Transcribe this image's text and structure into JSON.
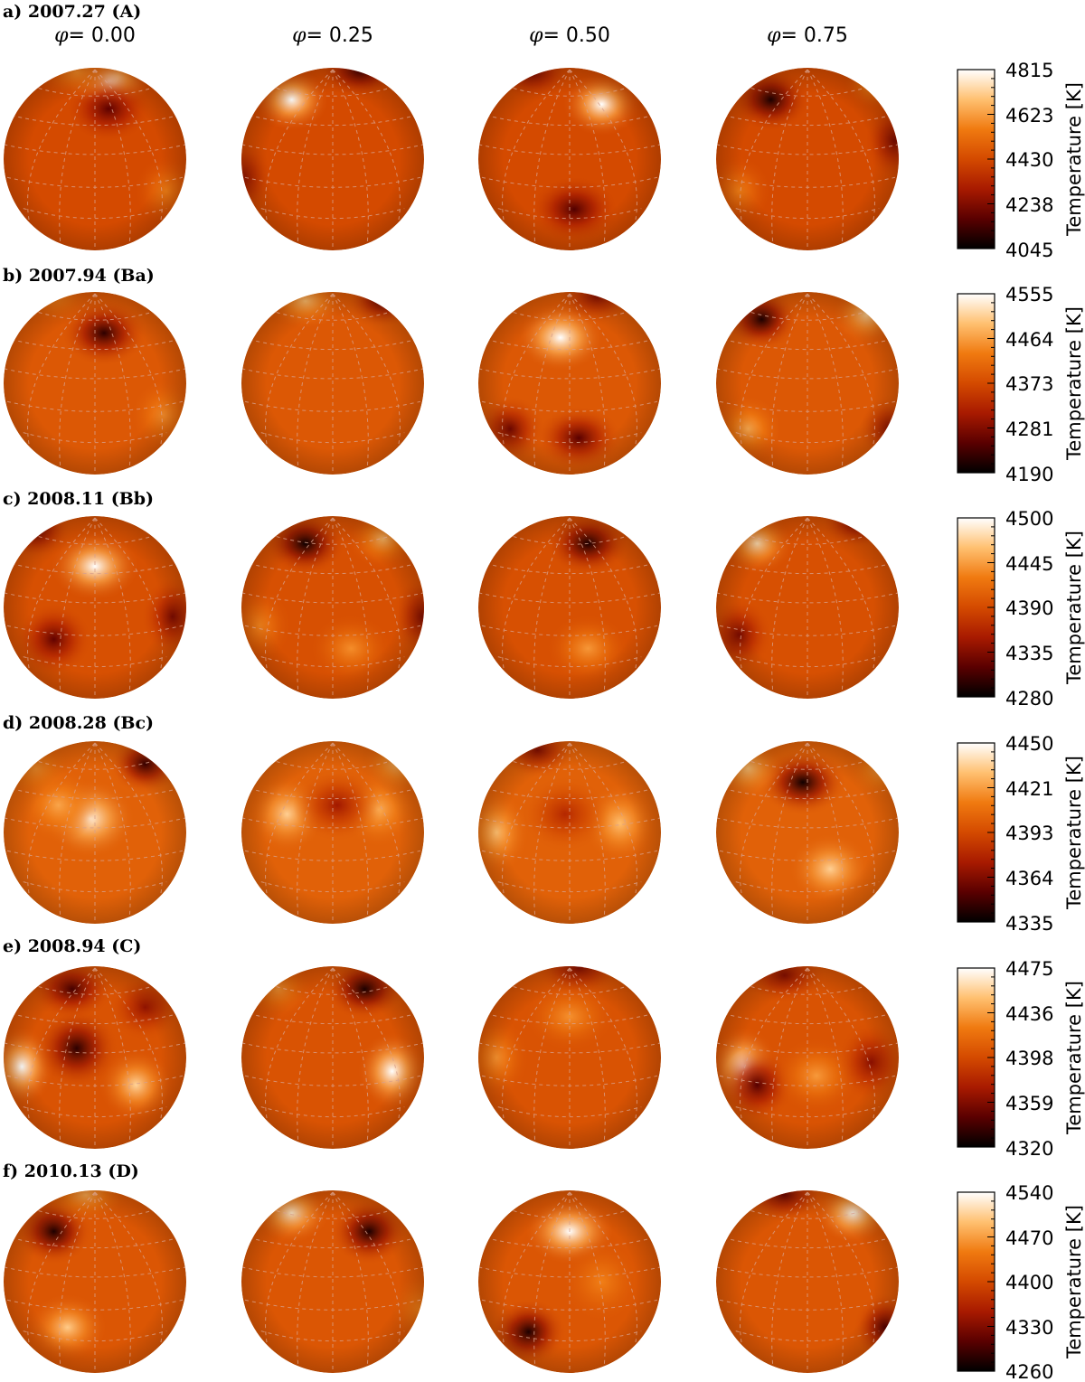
{
  "figure": {
    "phase_symbol": "φ",
    "phases": [
      "= 0.00",
      "= 0.25",
      "= 0.50",
      "= 0.75"
    ],
    "colorbar_title": "Temperature [K]",
    "colors": {
      "cmap": [
        "#000000",
        "#5a0000",
        "#a81a00",
        "#d44a00",
        "#f07a10",
        "#ffc070",
        "#ffffff"
      ],
      "grid": "#d9a08a"
    },
    "rows": [
      {
        "label": "a) 2007.27 (A)",
        "colorbar_ticks": [
          "4815",
          "4623",
          "4430",
          "4238",
          "4045"
        ],
        "base_level": 0.5,
        "spheres": [
          {
            "name": "a-phase-000",
            "spots": [
              [
                0.15,
                -0.85,
                0.95
              ],
              [
                0.15,
                -0.55,
                -0.65
              ],
              [
                0.78,
                0.35,
                0.35
              ],
              [
                -0.2,
                -0.95,
                0.4
              ]
            ]
          },
          {
            "name": "a-phase-025",
            "spots": [
              [
                -0.45,
                -0.65,
                1.0
              ],
              [
                0.3,
                -0.97,
                -0.75
              ],
              [
                -0.98,
                0.2,
                -0.4
              ]
            ]
          },
          {
            "name": "a-phase-050",
            "spots": [
              [
                0.35,
                -0.6,
                1.0
              ],
              [
                0.05,
                0.55,
                -0.7
              ],
              [
                -0.4,
                -0.95,
                -0.5
              ]
            ]
          },
          {
            "name": "a-phase-075",
            "spots": [
              [
                -0.4,
                -0.65,
                -0.9
              ],
              [
                -0.75,
                0.35,
                0.35
              ],
              [
                0.75,
                -0.85,
                0.6
              ],
              [
                0.95,
                -0.2,
                -0.5
              ]
            ]
          }
        ]
      },
      {
        "label": "b) 2007.94 (Ba)",
        "colorbar_ticks": [
          "4555",
          "4464",
          "4373",
          "4281",
          "4190"
        ],
        "base_level": 0.55,
        "spheres": [
          {
            "name": "b-phase-000",
            "spots": [
              [
                0.1,
                -0.55,
                -0.85
              ],
              [
                0.75,
                0.35,
                0.35
              ],
              [
                -0.45,
                -0.95,
                0.3
              ]
            ]
          },
          {
            "name": "b-phase-025",
            "spots": [
              [
                -0.3,
                -0.9,
                0.6
              ],
              [
                0.55,
                -0.92,
                -0.7
              ]
            ]
          },
          {
            "name": "b-phase-050",
            "spots": [
              [
                -0.1,
                -0.5,
                1.0
              ],
              [
                -0.65,
                0.5,
                -0.6
              ],
              [
                0.1,
                0.6,
                -0.7
              ],
              [
                0.3,
                -0.95,
                -0.5
              ]
            ]
          },
          {
            "name": "b-phase-075",
            "spots": [
              [
                -0.5,
                -0.7,
                -0.9
              ],
              [
                0.65,
                -0.75,
                0.7
              ],
              [
                -0.65,
                0.5,
                0.5
              ],
              [
                0.9,
                0.5,
                -0.5
              ]
            ]
          }
        ]
      },
      {
        "label": "c) 2008.11 (Bb)",
        "colorbar_ticks": [
          "4500",
          "4445",
          "4390",
          "4335",
          "4280"
        ],
        "base_level": 0.52,
        "spheres": [
          {
            "name": "c-phase-000",
            "spots": [
              [
                0.0,
                -0.45,
                1.0
              ],
              [
                -0.45,
                0.35,
                -0.65
              ],
              [
                0.85,
                0.1,
                -0.55
              ],
              [
                -0.65,
                -0.85,
                -0.6
              ]
            ]
          },
          {
            "name": "c-phase-025",
            "spots": [
              [
                -0.3,
                -0.7,
                -0.95
              ],
              [
                0.55,
                -0.75,
                0.6
              ],
              [
                0.2,
                0.45,
                0.4
              ],
              [
                -0.8,
                0.2,
                0.35
              ],
              [
                0.98,
                0.1,
                -0.5
              ]
            ]
          },
          {
            "name": "c-phase-050",
            "spots": [
              [
                0.2,
                -0.7,
                -0.9
              ],
              [
                0.2,
                0.45,
                0.45
              ]
            ]
          },
          {
            "name": "c-phase-075",
            "spots": [
              [
                -0.55,
                -0.7,
                0.8
              ],
              [
                0.55,
                -0.95,
                -0.6
              ],
              [
                -0.75,
                0.3,
                -0.55
              ]
            ]
          }
        ]
      },
      {
        "label": "d) 2008.28 (Bc)",
        "colorbar_ticks": [
          "4450",
          "4421",
          "4393",
          "4364",
          "4335"
        ],
        "base_level": 0.58,
        "spheres": [
          {
            "name": "d-phase-000",
            "spots": [
              [
                -0.05,
                -0.15,
                0.9
              ],
              [
                -0.4,
                -0.3,
                0.45
              ],
              [
                0.55,
                -0.75,
                -0.8
              ],
              [
                -0.65,
                -0.7,
                0.3
              ]
            ]
          },
          {
            "name": "d-phase-025",
            "spots": [
              [
                -0.5,
                -0.2,
                0.7
              ],
              [
                0.5,
                -0.25,
                0.5
              ],
              [
                0.05,
                -0.3,
                -0.45
              ],
              [
                0.7,
                -0.75,
                0.5
              ]
            ]
          },
          {
            "name": "d-phase-050",
            "spots": [
              [
                -0.8,
                0.0,
                0.6
              ],
              [
                0.55,
                -0.1,
                0.6
              ],
              [
                -0.35,
                -0.9,
                -0.55
              ],
              [
                -0.05,
                -0.2,
                -0.35
              ]
            ]
          },
          {
            "name": "d-phase-075",
            "spots": [
              [
                -0.05,
                -0.55,
                -0.95
              ],
              [
                -0.65,
                -0.7,
                0.6
              ],
              [
                0.25,
                0.4,
                0.7
              ],
              [
                0.8,
                -0.7,
                0.4
              ]
            ]
          }
        ]
      },
      {
        "label": "e) 2008.94 (C)",
        "colorbar_ticks": [
          "4475",
          "4436",
          "4398",
          "4359",
          "4320"
        ],
        "base_level": 0.53,
        "spheres": [
          {
            "name": "e-phase-000",
            "spots": [
              [
                -0.8,
                0.1,
                1.0
              ],
              [
                0.45,
                0.3,
                0.75
              ],
              [
                -0.2,
                -0.1,
                -0.85
              ],
              [
                -0.25,
                -0.75,
                -0.75
              ],
              [
                0.55,
                -0.55,
                -0.45
              ]
            ]
          },
          {
            "name": "e-phase-025",
            "spots": [
              [
                0.65,
                0.15,
                1.0
              ],
              [
                0.35,
                -0.75,
                -0.9
              ],
              [
                -0.6,
                -0.75,
                0.4
              ]
            ]
          },
          {
            "name": "e-phase-050",
            "spots": [
              [
                0.0,
                -0.45,
                0.4
              ],
              [
                -0.8,
                0.0,
                0.4
              ],
              [
                0.1,
                -0.98,
                -0.5
              ]
            ]
          },
          {
            "name": "e-phase-075",
            "spots": [
              [
                -0.7,
                0.1,
                1.0
              ],
              [
                -0.55,
                0.3,
                -0.7
              ],
              [
                0.1,
                0.2,
                0.45
              ],
              [
                0.7,
                0.05,
                -0.5
              ],
              [
                -0.25,
                -0.9,
                -0.5
              ]
            ]
          }
        ]
      },
      {
        "label": "f) 2010.13 (D)",
        "colorbar_ticks": [
          "4540",
          "4470",
          "4400",
          "4330",
          "4260"
        ],
        "base_level": 0.54,
        "spheres": [
          {
            "name": "f-phase-000",
            "spots": [
              [
                -0.45,
                -0.55,
                -0.9
              ],
              [
                -0.3,
                0.5,
                0.7
              ],
              [
                -0.1,
                -0.95,
                0.5
              ]
            ]
          },
          {
            "name": "f-phase-025",
            "spots": [
              [
                -0.45,
                -0.75,
                0.85
              ],
              [
                0.4,
                -0.55,
                -0.9
              ],
              [
                0.95,
                0.3,
                0.3
              ]
            ]
          },
          {
            "name": "f-phase-050",
            "spots": [
              [
                0.0,
                -0.55,
                1.0
              ],
              [
                -0.45,
                0.55,
                -0.9
              ],
              [
                0.35,
                0.0,
                0.3
              ]
            ]
          },
          {
            "name": "f-phase-075",
            "spots": [
              [
                0.5,
                -0.75,
                0.95
              ],
              [
                0.85,
                0.5,
                -0.7
              ],
              [
                -0.25,
                -0.95,
                -0.6
              ]
            ]
          }
        ]
      }
    ]
  }
}
